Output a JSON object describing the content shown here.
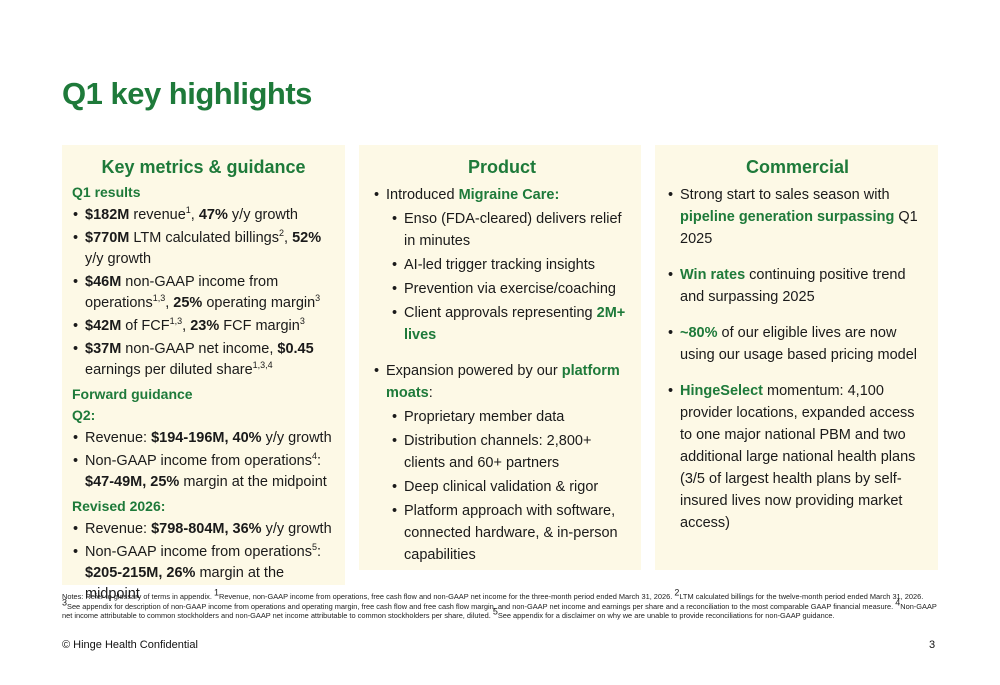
{
  "title": "Q1 key highlights",
  "col1": {
    "heading": "Key metrics & guidance",
    "q1_results": "Q1 results",
    "revenue": {
      "v1": "$182M",
      "t1": " revenue",
      "s1": "1",
      "t2": ", ",
      "v2": "47%",
      "t3": " y/y growth"
    },
    "billings": {
      "v1": "$770M",
      "t1": " LTM calculated billings",
      "s1": "2",
      "t2": ", ",
      "v2": "52%",
      "t3": " y/y growth"
    },
    "opinc": {
      "v1": "$46M",
      "t1": " non-GAAP income from operations",
      "s1": "1,3",
      "t2": ", ",
      "v2": "25%",
      "t3": " operating margin",
      "s2": "3"
    },
    "fcf": {
      "v1": "$42M",
      "t1": " of FCF",
      "s1": "1,3",
      "t2": ", ",
      "v2": "23%",
      "t3": " FCF margin",
      "s2": "3"
    },
    "netinc": {
      "v1": "$37M",
      "t1": " non-GAAP net income, ",
      "v2": "$0.45",
      "t2": " earnings per diluted share",
      "s1": "1,3,4"
    },
    "forward_guidance": "Forward guidance",
    "q2": "Q2:",
    "q2_revenue": {
      "t1": "Revenue: ",
      "v1": "$194-196M, 40%",
      "t2": " y/y growth"
    },
    "q2_opinc": {
      "t1": "Non-GAAP income from operations",
      "s1": "4",
      "t2": ":",
      "v1": "$47-49M,  25%",
      "t3": " margin at the midpoint"
    },
    "revised": "Revised 2026:",
    "r_revenue": {
      "t1": "Revenue: ",
      "v1": "$798-804M, 36%",
      "t2": " y/y growth"
    },
    "r_opinc": {
      "t1": "Non-GAAP income from operations",
      "s1": "5",
      "t2": ":",
      "v1": "$205-215M, 26%",
      "t3": " margin at the midpoint"
    }
  },
  "col2": {
    "heading": "Product",
    "b1": {
      "t1": "Introduced ",
      "g1": "Migraine Care:"
    },
    "sub1": [
      "Enso (FDA-cleared) delivers relief in minutes",
      "AI-led trigger tracking insights",
      "Prevention via exercise/coaching"
    ],
    "approvals": {
      "t1": "Client approvals representing ",
      "g1": "2M+ lives"
    },
    "b2": {
      "t1": "Expansion powered by our ",
      "g1": "platform moats",
      "t2": ":"
    },
    "sub2": [
      "Proprietary member data",
      "Distribution channels: 2,800+ clients and 60+ partners",
      "Deep clinical validation & rigor",
      "Platform approach with software, connected hardware, & in-person capabilities"
    ]
  },
  "col3": {
    "heading": "Commercial",
    "b1": {
      "t1": "Strong start to sales season with ",
      "g1": "pipeline generation surpassing",
      "t2": " Q1 2025"
    },
    "b2": {
      "g1": "Win rates",
      "t1": " continuing positive trend and surpassing 2025"
    },
    "b3": {
      "g1": "~80%",
      "t1": " of our eligible lives are now using our usage based pricing model"
    },
    "b4": {
      "g1": "HingeSelect",
      "t1": " momentum: 4,100 provider locations, expanded access to one major national PBM and two additional large national health plans (3/5 of largest health plans by self-insured lives now providing market access)"
    }
  },
  "notes": {
    "t1": "Notes: Refer to glossary of terms in appendix. ",
    "s1": "1",
    "t2": "Revenue, non-GAAP income from operations, free cash flow and non-GAAP net income for the three-month period ended March 31, 2026. ",
    "s2": "2",
    "t3": "LTM calculated billings for the twelve-month period ended March 31, 2026. ",
    "s3": "3",
    "t4": "See appendix for description of non-GAAP income from operations and operating margin, free cash flow and free cash flow margin, and non-GAAP net income and earnings per share and a reconciliation to the most comparable GAAP financial measure. ",
    "s4": "4",
    "t5": "Non-GAAP net income attributable to common stockholders and non-GAAP net income attributable to common stockholders per share, diluted. ",
    "s5": "5",
    "t6": "See appendix for a disclaimer on why we are unable to provide reconciliations for non-GAAP guidance."
  },
  "footer": "© Hinge Health Confidential",
  "page_number": "3",
  "colors": {
    "brand_green": "#1e7a3a",
    "panel_background": "#fdf9e6"
  }
}
